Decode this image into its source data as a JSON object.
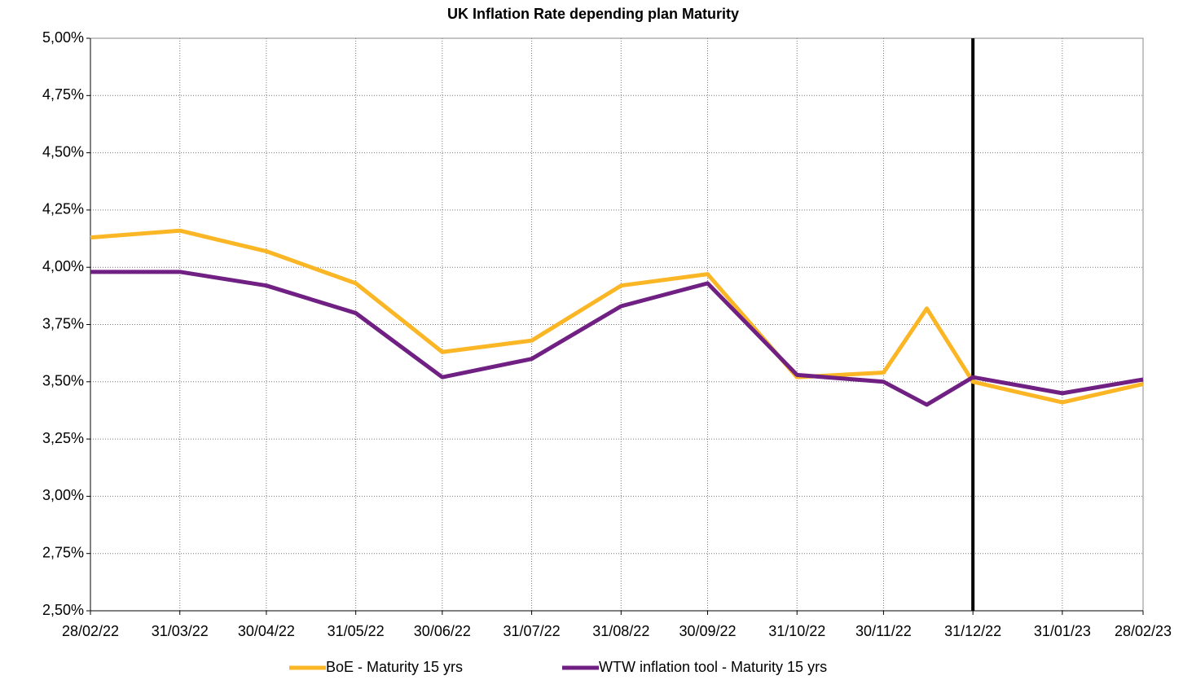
{
  "chart_data": {
    "type": "line",
    "title": "UK Inflation Rate depending plan Maturity",
    "x": [
      "28/02/22",
      "31/03/22",
      "30/04/22",
      "31/05/22",
      "30/06/22",
      "31/07/22",
      "31/08/22",
      "30/09/22",
      "31/10/22",
      "30/11/22",
      "15/12/22",
      "31/12/22",
      "31/01/23",
      "28/02/23"
    ],
    "series": [
      {
        "name": "BoE - Maturity 15 yrs",
        "color": "#fbb625",
        "values": [
          4.13,
          4.16,
          4.07,
          3.93,
          3.63,
          3.68,
          3.92,
          3.97,
          3.52,
          3.54,
          3.82,
          3.5,
          3.41,
          3.49
        ]
      },
      {
        "name": "WTW inflation tool - Maturity 15 yrs",
        "color": "#702082",
        "values": [
          3.98,
          3.98,
          3.92,
          3.8,
          3.52,
          3.6,
          3.83,
          3.93,
          3.53,
          3.5,
          3.4,
          3.52,
          3.45,
          3.51
        ]
      }
    ],
    "xlim": [
      "28/02/22",
      "28/02/23"
    ],
    "xticks": [
      "28/02/22",
      "31/03/22",
      "30/04/22",
      "31/05/22",
      "30/06/22",
      "31/07/22",
      "31/08/22",
      "30/09/22",
      "31/10/22",
      "30/11/22",
      "31/12/22",
      "31/01/23",
      "28/02/23"
    ],
    "ylim": [
      2.5,
      5.0
    ],
    "yticks": [
      {
        "value": 2.5,
        "label": "2,50%"
      },
      {
        "value": 2.75,
        "label": "2,75%"
      },
      {
        "value": 3.0,
        "label": "3,00%"
      },
      {
        "value": 3.25,
        "label": "3,25%"
      },
      {
        "value": 3.5,
        "label": "3,50%"
      },
      {
        "value": 3.75,
        "label": "3,75%"
      },
      {
        "value": 4.0,
        "label": "4,00%"
      },
      {
        "value": 4.25,
        "label": "4,25%"
      },
      {
        "value": 4.5,
        "label": "4,50%"
      },
      {
        "value": 4.75,
        "label": "4,75%"
      },
      {
        "value": 5.0,
        "label": "5,00%"
      }
    ],
    "grid": true,
    "vline_x": "31/12/22",
    "legend": "bottom"
  }
}
